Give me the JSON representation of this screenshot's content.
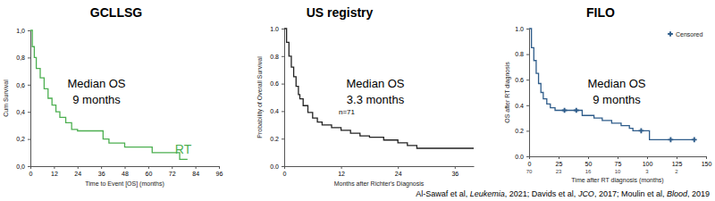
{
  "chart_data": [
    {
      "type": "line",
      "title": "GCLLSG",
      "xlabel": "Time to Event [OS] (months)",
      "ylabel": "Cum Survival",
      "annotations": [
        "Median OS",
        "9 months"
      ],
      "x": [
        0,
        1,
        2,
        3,
        5,
        7,
        9,
        11,
        13,
        15,
        18,
        21,
        24,
        37,
        40,
        48,
        62,
        76,
        80
      ],
      "series": [
        {
          "name": "RT",
          "color": "#4caf50",
          "line_style": "step",
          "values": [
            1.0,
            0.88,
            0.8,
            0.72,
            0.65,
            0.57,
            0.5,
            0.45,
            0.4,
            0.36,
            0.32,
            0.27,
            0.26,
            0.2,
            0.17,
            0.14,
            0.1,
            0.05,
            0.05
          ]
        }
      ],
      "xlim": [
        0,
        96
      ],
      "xticks": [
        0,
        12,
        24,
        36,
        48,
        60,
        72,
        84,
        96
      ],
      "ylim": [
        0,
        1
      ],
      "yticks": [
        {
          "value": 0,
          "label": "0,0"
        },
        {
          "value": 0.2,
          "label": "0,2"
        },
        {
          "value": 0.4,
          "label": "0,4"
        },
        {
          "value": 0.6,
          "label": "0,6"
        },
        {
          "value": 0.8,
          "label": "0,8"
        },
        {
          "value": 1,
          "label": "1,0"
        }
      ]
    },
    {
      "type": "line",
      "title": "US registry",
      "xlabel": "Months after Richter's Diagnosis",
      "ylabel": "Probability of Overall Survival",
      "annotations": [
        "Median OS",
        "3.3 months",
        "n=71"
      ],
      "x": [
        0,
        0.5,
        1,
        1.5,
        2,
        2.5,
        3,
        3.3,
        4,
        5,
        6,
        7,
        8,
        10,
        12,
        14,
        16,
        18,
        21,
        24,
        26,
        28,
        40
      ],
      "series": [
        {
          "color": "#222222",
          "line_style": "step",
          "values": [
            1.0,
            0.9,
            0.8,
            0.72,
            0.65,
            0.58,
            0.52,
            0.49,
            0.44,
            0.39,
            0.35,
            0.32,
            0.3,
            0.28,
            0.26,
            0.24,
            0.22,
            0.21,
            0.19,
            0.17,
            0.15,
            0.13,
            0.13
          ]
        }
      ],
      "xlim": [
        0,
        40
      ],
      "xticks": [
        0,
        12,
        24,
        36
      ],
      "ylim": [
        0,
        1
      ],
      "yticks": [
        {
          "value": 0,
          "label": "0.0"
        },
        {
          "value": 0.2,
          "label": "0.2"
        },
        {
          "value": 0.4,
          "label": "0.4"
        },
        {
          "value": 0.6,
          "label": "0.6"
        },
        {
          "value": 0.8,
          "label": "0.8"
        },
        {
          "value": 1,
          "label": "1.0"
        }
      ]
    },
    {
      "type": "line",
      "title": "FILO",
      "xlabel": "Time after RT diagnosis (months)",
      "ylabel": "OS after RT diagnosis",
      "annotations": [
        "Median OS",
        "9 months"
      ],
      "x": [
        0,
        2,
        4,
        6,
        8,
        10,
        12,
        15,
        18,
        22,
        45,
        55,
        62,
        70,
        78,
        85,
        88,
        102,
        140
      ],
      "series": [
        {
          "color": "#2e5c8a",
          "line_style": "step",
          "values": [
            1.0,
            0.85,
            0.75,
            0.65,
            0.57,
            0.5,
            0.45,
            0.41,
            0.38,
            0.36,
            0.32,
            0.3,
            0.28,
            0.26,
            0.24,
            0.22,
            0.2,
            0.13,
            0.13
          ]
        }
      ],
      "censored": {
        "label": "Censored",
        "x": [
          30,
          40,
          95,
          120,
          140
        ],
        "y": [
          0.36,
          0.36,
          0.2,
          0.13,
          0.13
        ]
      },
      "at_risk": {
        "x": [
          0,
          25,
          50,
          75,
          100,
          125
        ],
        "values": [
          70,
          23,
          16,
          10,
          3,
          2
        ]
      },
      "legend": "upper right",
      "xlim": [
        0,
        150
      ],
      "xticks": [
        0,
        25,
        50,
        75,
        100,
        125,
        150
      ],
      "ylim": [
        0,
        1
      ],
      "yticks": [
        {
          "value": 0,
          "label": "0.0"
        },
        {
          "value": 0.2,
          "label": "0.2"
        },
        {
          "value": 0.4,
          "label": "0.4"
        },
        {
          "value": 0.6,
          "label": "0.6"
        },
        {
          "value": 0.8,
          "label": "0.8"
        },
        {
          "value": 1,
          "label": "1.0"
        }
      ]
    }
  ],
  "citation": [
    "Al-Sawaf et al, ",
    "Leukemia",
    ", 2021; Davids et al, ",
    "JCO",
    ", 2017; Moulin et al, ",
    "Blood",
    ", 2019"
  ]
}
